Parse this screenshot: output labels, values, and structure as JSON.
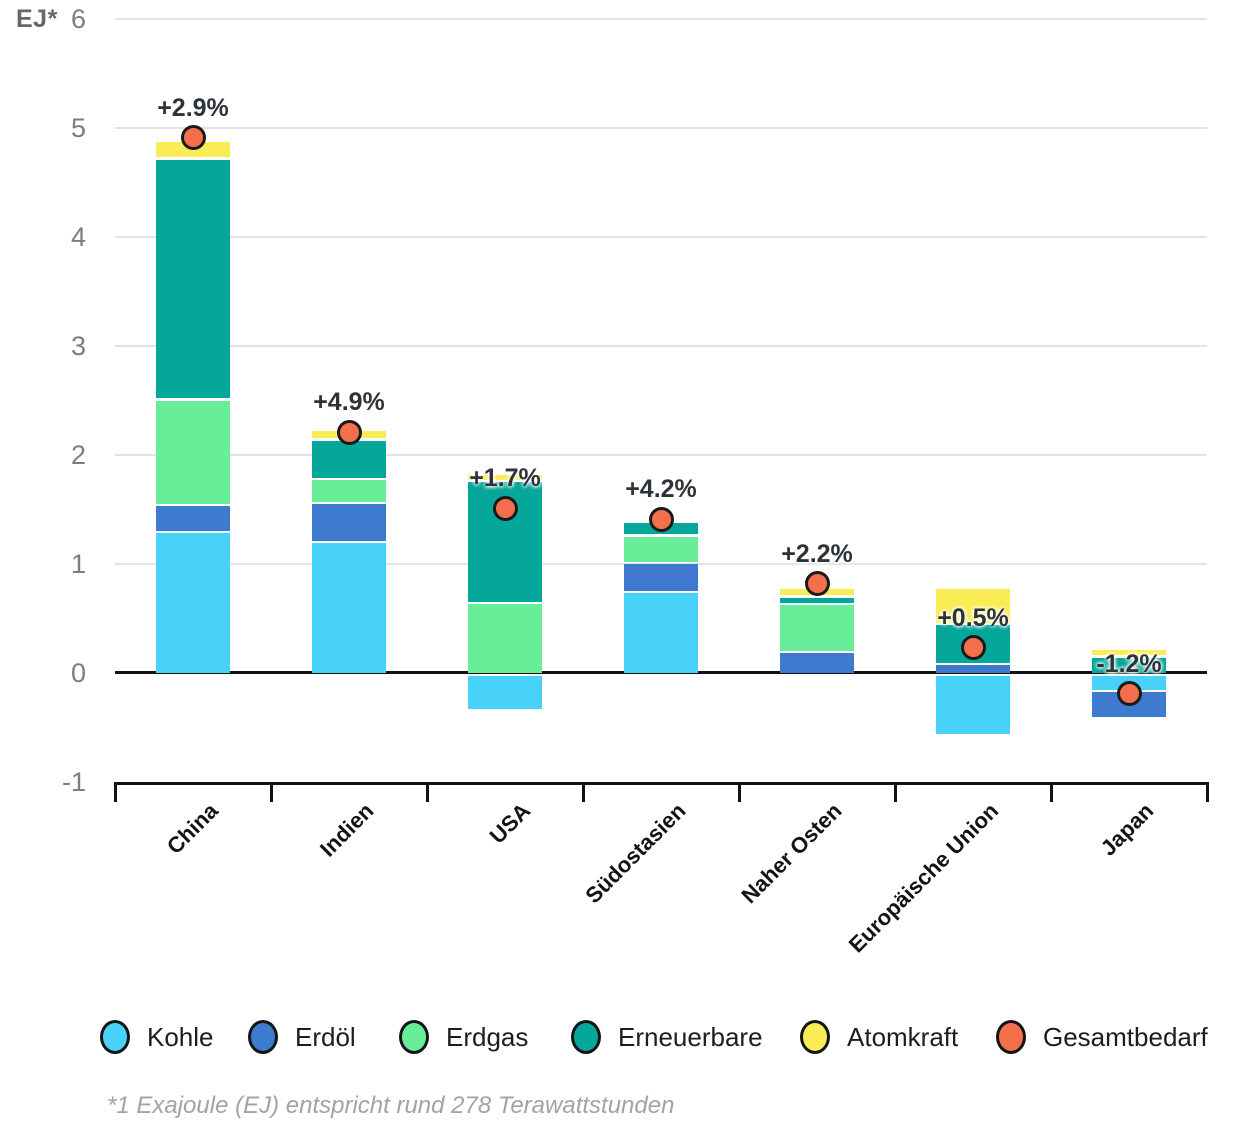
{
  "chart_data": {
    "type": "bar",
    "stacked": true,
    "unit": "EJ",
    "ylabel": "EJ*",
    "categories": [
      "China",
      "Indien",
      "USA",
      "Südostasien",
      "Naher Osten",
      "Europäische Union",
      "Japan"
    ],
    "series": [
      {
        "name": "Kohle",
        "color": "#48d1f9",
        "values": [
          1.28,
          1.19,
          -0.31,
          0.73,
          0,
          -0.54,
          -0.13
        ]
      },
      {
        "name": "Erdöl",
        "color": "#3e7bce",
        "values": [
          0.25,
          0.36,
          0,
          0.27,
          0.18,
          0.07,
          -0.25
        ]
      },
      {
        "name": "Erdgas",
        "color": "#68ed98",
        "values": [
          0.97,
          0.22,
          0.63,
          0.25,
          0.44,
          0,
          0
        ]
      },
      {
        "name": "Erneuerbare",
        "color": "#05a79a",
        "values": [
          2.21,
          0.36,
          1.12,
          0.13,
          0.07,
          0.37,
          0.14
        ]
      },
      {
        "name": "Atomkraft",
        "color": "#f9ec55",
        "values": [
          0.16,
          0.09,
          0.07,
          0,
          0.08,
          0.33,
          0.07
        ]
      }
    ],
    "total_markers": {
      "name": "Gesamtbedarf",
      "color": "#f4704d",
      "values": [
        4.91,
        2.21,
        1.51,
        1.41,
        0.82,
        0.23,
        -0.19
      ],
      "labels": [
        "+2.9%",
        "+4.9%",
        "+1.7%",
        "+4.2%",
        "+2.2%",
        "+0.5%",
        "-1.2%"
      ]
    },
    "y_ticks": [
      6,
      5,
      4,
      3,
      2,
      1,
      0,
      -1
    ],
    "ylim": [
      -1,
      6
    ],
    "grid": true,
    "legend_position": "bottom"
  },
  "legend": {
    "items": [
      {
        "label": "Kohle",
        "color": "#48d1f9"
      },
      {
        "label": "Erdöl",
        "color": "#3e7bce"
      },
      {
        "label": "Erdgas",
        "color": "#68ed98"
      },
      {
        "label": "Erneuerbare",
        "color": "#05a79a"
      },
      {
        "label": "Atomkraft",
        "color": "#f9ec55"
      },
      {
        "label": "Gesamtbedarf",
        "color": "#f4704d"
      }
    ]
  },
  "footnote": "*1 Exajoule (EJ) entspricht rund 278 Terawattstunden"
}
